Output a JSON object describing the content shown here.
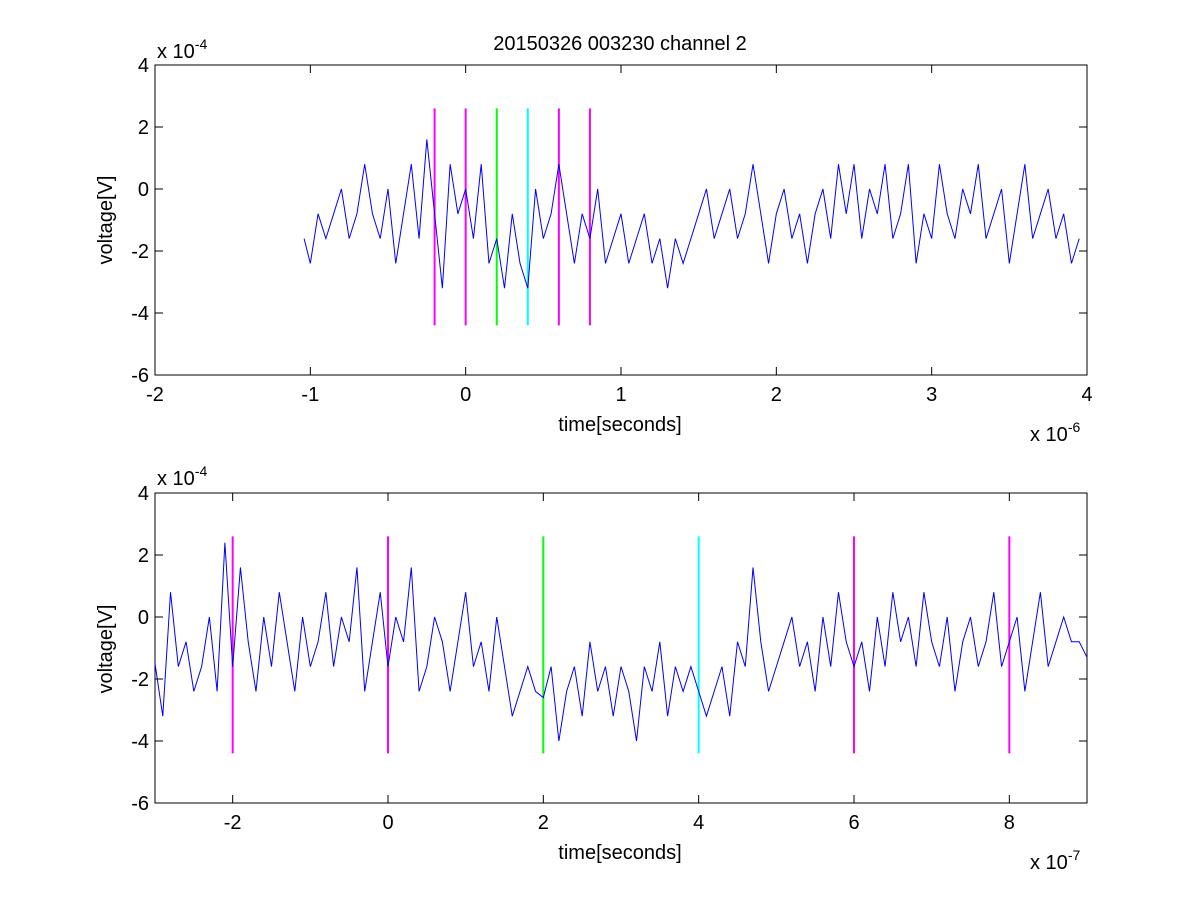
{
  "figure_title": "20150326 003230 channel 2",
  "chart_data": [
    {
      "type": "line",
      "title": "20150326 003230 channel 2",
      "xlabel": "time[seconds]",
      "ylabel": "voltage[V]",
      "x_exponent": "x 10",
      "x_exponent_power": "-6",
      "y_exponent": "x 10",
      "y_exponent_power": "-4",
      "xlim": [
        -2,
        4
      ],
      "ylim": [
        -6,
        4
      ],
      "xticks": [
        "-2",
        "-1",
        "0",
        "1",
        "2",
        "3",
        "4"
      ],
      "yticks": [
        "-6",
        "-4",
        "-2",
        "0",
        "2",
        "4"
      ],
      "xtick_values": [
        -2,
        -1,
        0,
        1,
        2,
        3,
        4
      ],
      "ytick_values": [
        -6,
        -4,
        -2,
        0,
        2,
        4
      ],
      "grid": false,
      "series": [
        {
          "color": "#0000ff",
          "x": [
            -1.04,
            -1.0,
            -0.95,
            -0.9,
            -0.85,
            -0.8,
            -0.75,
            -0.7,
            -0.65,
            -0.6,
            -0.55,
            -0.5,
            -0.45,
            -0.4,
            -0.35,
            -0.3,
            -0.25,
            -0.2,
            -0.15,
            -0.1,
            -0.05,
            0.0,
            0.05,
            0.1,
            0.15,
            0.2,
            0.25,
            0.3,
            0.35,
            0.4,
            0.45,
            0.5,
            0.55,
            0.6,
            0.65,
            0.7,
            0.75,
            0.8,
            0.85,
            0.9,
            0.95,
            1.0,
            1.05,
            1.1,
            1.15,
            1.2,
            1.25,
            1.3,
            1.35,
            1.4,
            1.45,
            1.5,
            1.55,
            1.6,
            1.65,
            1.7,
            1.75,
            1.8,
            1.85,
            1.9,
            1.95,
            2.0,
            2.05,
            2.1,
            2.15,
            2.2,
            2.25,
            2.3,
            2.35,
            2.4,
            2.45,
            2.5,
            2.55,
            2.6,
            2.65,
            2.7,
            2.75,
            2.8,
            2.85,
            2.9,
            2.95,
            3.0,
            3.05,
            3.1,
            3.15,
            3.2,
            3.25,
            3.3,
            3.35,
            3.4,
            3.45,
            3.5,
            3.55,
            3.6,
            3.65,
            3.7,
            3.75,
            3.8,
            3.85,
            3.9,
            3.95
          ],
          "y": [
            -1.6,
            -2.4,
            -0.8,
            -1.6,
            -0.8,
            0.0,
            -1.6,
            -0.8,
            0.8,
            -0.8,
            -1.6,
            0.0,
            -2.4,
            -0.8,
            0.8,
            -1.6,
            1.6,
            -0.8,
            -3.2,
            0.8,
            -0.8,
            0.0,
            -1.6,
            0.8,
            -2.4,
            -1.6,
            -3.2,
            -0.8,
            -2.4,
            -3.2,
            0.0,
            -1.6,
            -0.8,
            0.8,
            -0.8,
            -2.4,
            -0.8,
            -1.6,
            0.0,
            -2.4,
            -1.6,
            -0.8,
            -2.4,
            -1.6,
            -0.8,
            -2.4,
            -1.6,
            -3.2,
            -1.6,
            -2.4,
            -1.6,
            -0.8,
            0.0,
            -1.6,
            -0.8,
            0.0,
            -1.6,
            -0.8,
            0.8,
            -0.8,
            -2.4,
            -0.8,
            0.0,
            -1.6,
            -0.8,
            -2.4,
            -0.8,
            0.0,
            -1.6,
            0.8,
            -0.8,
            0.8,
            -1.6,
            0.0,
            -0.8,
            0.8,
            -1.6,
            -0.8,
            0.8,
            -2.4,
            -0.8,
            -1.6,
            0.8,
            -0.8,
            -1.6,
            0.0,
            -0.8,
            0.8,
            -1.6,
            -0.8,
            0.0,
            -2.4,
            -0.8,
            0.8,
            -1.6,
            -0.8,
            0.0,
            -1.6,
            -0.8,
            -2.4,
            -1.6
          ]
        }
      ],
      "markers": [
        {
          "x": -0.2,
          "color": "#ff00ff"
        },
        {
          "x": 0.0,
          "color": "#ff00ff"
        },
        {
          "x": 0.2,
          "color": "#00ff00"
        },
        {
          "x": 0.4,
          "color": "#00ffff"
        },
        {
          "x": 0.6,
          "color": "#ff00ff"
        },
        {
          "x": 0.8,
          "color": "#ff00ff"
        }
      ],
      "marker_range": [
        -4.4,
        2.6
      ]
    },
    {
      "type": "line",
      "title": "",
      "xlabel": "time[seconds]",
      "ylabel": "voltage[V]",
      "x_exponent": "x 10",
      "x_exponent_power": "-7",
      "y_exponent": "x 10",
      "y_exponent_power": "-4",
      "xlim": [
        -3,
        9
      ],
      "ylim": [
        -6,
        4
      ],
      "xticks": [
        "-2",
        "0",
        "2",
        "4",
        "6",
        "8"
      ],
      "yticks": [
        "-6",
        "-4",
        "-2",
        "0",
        "2",
        "4"
      ],
      "xtick_values": [
        -2,
        0,
        2,
        4,
        6,
        8
      ],
      "ytick_values": [
        -6,
        -4,
        -2,
        0,
        2,
        4
      ],
      "grid": false,
      "series": [
        {
          "color": "#0000ff",
          "x": [
            -3.0,
            -2.9,
            -2.8,
            -2.7,
            -2.6,
            -2.5,
            -2.4,
            -2.3,
            -2.2,
            -2.1,
            -2.0,
            -1.9,
            -1.8,
            -1.7,
            -1.6,
            -1.5,
            -1.4,
            -1.3,
            -1.2,
            -1.1,
            -1.0,
            -0.9,
            -0.8,
            -0.7,
            -0.6,
            -0.5,
            -0.4,
            -0.3,
            -0.2,
            -0.1,
            0.0,
            0.1,
            0.2,
            0.3,
            0.4,
            0.5,
            0.6,
            0.7,
            0.8,
            0.9,
            1.0,
            1.1,
            1.2,
            1.3,
            1.4,
            1.5,
            1.6,
            1.7,
            1.8,
            1.9,
            2.0,
            2.1,
            2.2,
            2.3,
            2.4,
            2.5,
            2.6,
            2.7,
            2.8,
            2.9,
            3.0,
            3.1,
            3.2,
            3.3,
            3.4,
            3.5,
            3.6,
            3.7,
            3.8,
            3.9,
            4.0,
            4.1,
            4.2,
            4.3,
            4.4,
            4.5,
            4.6,
            4.7,
            4.8,
            4.9,
            5.0,
            5.1,
            5.2,
            5.3,
            5.4,
            5.5,
            5.6,
            5.7,
            5.8,
            5.9,
            6.0,
            6.1,
            6.2,
            6.3,
            6.4,
            6.5,
            6.6,
            6.7,
            6.8,
            6.9,
            7.0,
            7.1,
            7.2,
            7.3,
            7.4,
            7.5,
            7.6,
            7.7,
            7.8,
            7.9,
            8.0,
            8.1,
            8.2,
            8.3,
            8.4,
            8.5,
            8.6,
            8.7,
            8.8,
            8.9,
            9.0
          ],
          "y": [
            -1.5,
            -3.2,
            0.8,
            -1.6,
            -0.8,
            -2.4,
            -1.6,
            0.0,
            -2.4,
            2.4,
            -1.6,
            1.6,
            -0.8,
            -2.4,
            0.0,
            -1.6,
            0.8,
            -0.8,
            -2.4,
            0.0,
            -1.6,
            -0.8,
            0.8,
            -1.6,
            0.0,
            -0.8,
            1.6,
            -2.4,
            -0.8,
            0.8,
            -1.6,
            0.0,
            -0.8,
            1.6,
            -2.4,
            -1.6,
            0.0,
            -0.8,
            -2.4,
            -0.8,
            0.8,
            -1.6,
            -0.8,
            -2.4,
            0.0,
            -1.6,
            -3.2,
            -2.4,
            -1.6,
            -2.4,
            -2.6,
            -1.6,
            -4.0,
            -2.4,
            -1.6,
            -3.2,
            -0.8,
            -2.4,
            -1.6,
            -3.2,
            -1.6,
            -2.4,
            -4.0,
            -1.6,
            -2.4,
            -0.8,
            -3.2,
            -1.6,
            -2.4,
            -1.6,
            -2.4,
            -3.2,
            -2.4,
            -1.6,
            -3.2,
            -0.8,
            -1.6,
            1.6,
            -0.8,
            -2.4,
            -1.6,
            -0.8,
            0.0,
            -1.6,
            -0.8,
            -2.4,
            0.0,
            -1.6,
            0.8,
            -0.8,
            -1.6,
            -0.8,
            -2.4,
            0.0,
            -1.6,
            0.8,
            -0.8,
            0.0,
            -1.6,
            0.8,
            -0.8,
            -1.6,
            0.0,
            -2.4,
            -0.8,
            0.0,
            -1.6,
            -0.8,
            0.8,
            -1.6,
            -0.8,
            0.0,
            -2.4,
            -0.8,
            0.8,
            -1.6,
            -0.8,
            0.0,
            -0.8,
            -0.8,
            -1.3
          ]
        }
      ],
      "markers": [
        {
          "x": -2.0,
          "color": "#ff00ff"
        },
        {
          "x": 0.0,
          "color": "#ff00ff"
        },
        {
          "x": 2.0,
          "color": "#00ff00"
        },
        {
          "x": 4.0,
          "color": "#00ffff"
        },
        {
          "x": 6.0,
          "color": "#ff00ff"
        },
        {
          "x": 8.0,
          "color": "#ff00ff"
        }
      ],
      "marker_range": [
        -4.4,
        2.6
      ]
    }
  ]
}
